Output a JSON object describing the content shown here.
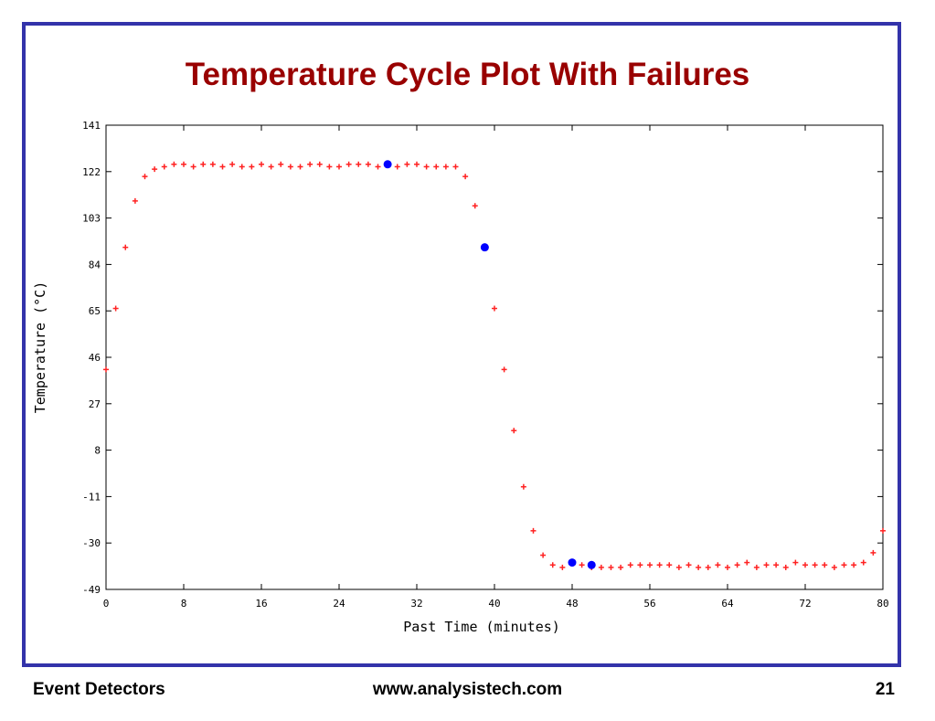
{
  "slide": {
    "title": "Temperature Cycle Plot With Failures",
    "footer_left": "Event Detectors",
    "footer_center": "www.analysistech.com",
    "footer_right": "21",
    "border_color": "#3333aa",
    "title_color": "#990000"
  },
  "chart_data": {
    "type": "scatter",
    "xlabel": "Past Time (minutes)",
    "ylabel": "Temperature (°C)",
    "xlim": [
      0,
      80
    ],
    "ylim": [
      -49,
      141
    ],
    "xticks": [
      0,
      8,
      16,
      24,
      32,
      40,
      48,
      56,
      64,
      72,
      80
    ],
    "yticks": [
      -49,
      -30,
      -11,
      8,
      27,
      46,
      65,
      84,
      103,
      122,
      141
    ],
    "grid": false,
    "series": [
      {
        "color": "#ff2222",
        "marker": "plus",
        "x": [
          0,
          1,
          2,
          3,
          4,
          5,
          6,
          7,
          8,
          9,
          10,
          11,
          12,
          13,
          14,
          15,
          16,
          17,
          18,
          19,
          20,
          21,
          22,
          23,
          24,
          25,
          26,
          27,
          28,
          29,
          30,
          31,
          32,
          33,
          34,
          35,
          36,
          37,
          38,
          39,
          40,
          41,
          42,
          43,
          44,
          45,
          46,
          47,
          48,
          49,
          50,
          51,
          52,
          53,
          54,
          55,
          56,
          57,
          58,
          59,
          60,
          61,
          62,
          63,
          64,
          65,
          66,
          67,
          68,
          69,
          70,
          71,
          72,
          73,
          74,
          75,
          76,
          77,
          78,
          79,
          80
        ],
        "y": [
          41,
          66,
          91,
          110,
          120,
          123,
          124,
          125,
          125,
          124,
          125,
          125,
          124,
          125,
          124,
          124,
          125,
          124,
          125,
          124,
          124,
          125,
          125,
          124,
          124,
          125,
          125,
          125,
          124,
          125,
          124,
          125,
          125,
          124,
          124,
          124,
          124,
          120,
          108,
          91,
          66,
          41,
          16,
          -7,
          -25,
          -35,
          -39,
          -40,
          -38,
          -39,
          -40,
          -40,
          -40,
          -40,
          -39,
          -39,
          -39,
          -39,
          -39,
          -40,
          -39,
          -40,
          -40,
          -39,
          -40,
          -39,
          -38,
          -40,
          -39,
          -39,
          -40,
          -38,
          -39,
          -39,
          -39,
          -40,
          -39,
          -39,
          -38,
          -34,
          -25
        ]
      },
      {
        "color": "#0000ff",
        "marker": "circle",
        "x": [
          29,
          39,
          48,
          50
        ],
        "y": [
          125,
          91,
          -38,
          -39
        ]
      }
    ]
  }
}
